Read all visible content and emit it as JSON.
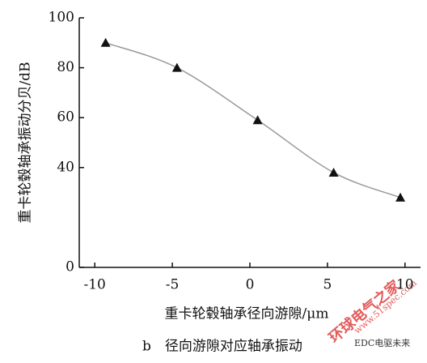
{
  "chart_data": {
    "type": "scatter",
    "title": "b　径向游隙对应轴承振动",
    "x_label": "重卡轮毂轴承径向游隙/μm",
    "y_label": "重卡轮毂轴承振动分贝/dB",
    "x": [
      -9.3,
      -4.7,
      0.5,
      5.4,
      9.7
    ],
    "values": [
      90,
      80,
      59,
      38,
      28
    ],
    "color": "#111111",
    "line_color": "#999999",
    "xlim": [
      -11,
      11
    ],
    "xticks": [
      -10,
      -5,
      0,
      5,
      10
    ],
    "ylim": [
      0,
      100
    ],
    "yticks": [
      0,
      40,
      60,
      80,
      100
    ]
  },
  "watermark": {
    "site": "环球电气之家",
    "url": "www.51spec.com",
    "brand": "EDC电驱未来"
  }
}
